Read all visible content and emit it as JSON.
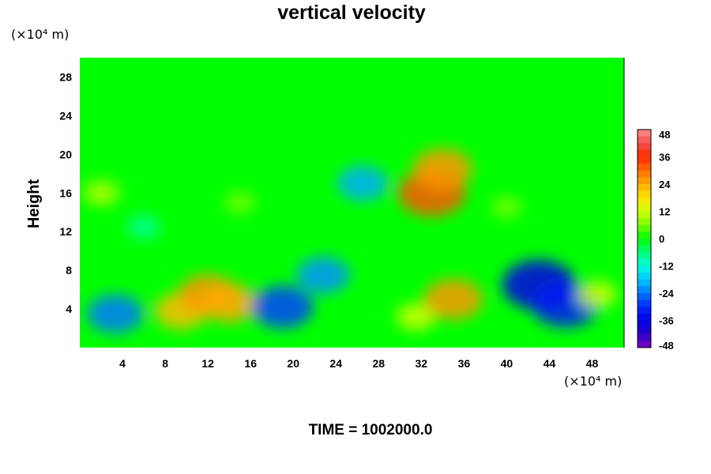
{
  "chart_data": {
    "type": "heatmap",
    "title": "vertical velocity",
    "ylabel": "Height",
    "x_unit": "(×10⁴ m)",
    "y_unit": "(×10⁴ m)",
    "xlim": [
      0,
      51
    ],
    "ylim": [
      0,
      30
    ],
    "x_ticks": [
      4,
      8,
      12,
      16,
      20,
      24,
      28,
      32,
      36,
      40,
      44,
      48
    ],
    "y_ticks": [
      4,
      8,
      12,
      16,
      20,
      24,
      28
    ],
    "colorbar": {
      "ticks": [
        48,
        36,
        24,
        12,
        0,
        -12,
        -24,
        -36,
        -48
      ],
      "min": -48,
      "max": 48
    },
    "footer": "TIME = 1002000.0",
    "features": [
      {
        "x": 3.3,
        "y": 3.5,
        "value": -24
      },
      {
        "x": 9.5,
        "y": 3.8,
        "value": 22
      },
      {
        "x": 12.0,
        "y": 5.5,
        "value": 26
      },
      {
        "x": 14.0,
        "y": 4.6,
        "value": 24
      },
      {
        "x": 19.0,
        "y": 4.2,
        "value": -28
      },
      {
        "x": 22.8,
        "y": 7.5,
        "value": -22
      },
      {
        "x": 31.5,
        "y": 3.2,
        "value": 12
      },
      {
        "x": 35.0,
        "y": 5.0,
        "value": 26
      },
      {
        "x": 43.0,
        "y": 6.5,
        "value": -36
      },
      {
        "x": 45.5,
        "y": 4.5,
        "value": -32
      },
      {
        "x": 48.5,
        "y": 5.5,
        "value": 12
      },
      {
        "x": 33.0,
        "y": 16.0,
        "value": 32
      },
      {
        "x": 34.0,
        "y": 18.5,
        "value": 26
      },
      {
        "x": 2.0,
        "y": 16.0,
        "value": 10
      },
      {
        "x": 26.5,
        "y": 17.0,
        "value": -20
      },
      {
        "x": 15.0,
        "y": 15.0,
        "value": 6
      },
      {
        "x": 40.0,
        "y": 14.5,
        "value": 6
      },
      {
        "x": 6.0,
        "y": 12.5,
        "value": -8
      }
    ]
  }
}
